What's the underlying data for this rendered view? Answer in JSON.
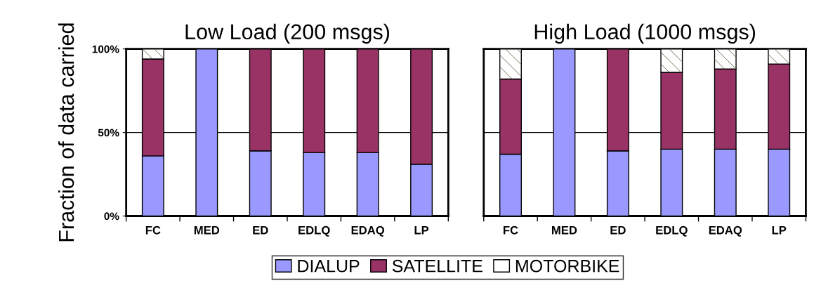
{
  "chart_data": [
    {
      "type": "bar",
      "title": "Low Load (200 msgs)",
      "ylabel": "Fraction of data carried",
      "stacked": true,
      "categories": [
        "FC",
        "MED",
        "ED",
        "EDLQ",
        "EDAQ",
        "LP"
      ],
      "series": [
        {
          "name": "DIALUP",
          "color": "#9999ff",
          "values": [
            0.36,
            1.0,
            0.39,
            0.38,
            0.38,
            0.31
          ]
        },
        {
          "name": "SATELLITE",
          "color": "#993366",
          "values": [
            0.58,
            null,
            0.61,
            0.62,
            0.62,
            0.69
          ]
        },
        {
          "name": "MOTORBIKE",
          "color": "#ffffff",
          "values": [
            0.06,
            null,
            null,
            null,
            null,
            null
          ]
        }
      ],
      "ylim": [
        0,
        1
      ],
      "yticks": [
        {
          "value": 0,
          "label": "0%"
        },
        {
          "value": 0.5,
          "label": "50%"
        },
        {
          "value": 1,
          "label": "100%"
        }
      ],
      "grid": "y",
      "legend": "bottom"
    },
    {
      "type": "bar",
      "title": "High Load (1000 msgs)",
      "stacked": true,
      "categories": [
        "FC",
        "MED",
        "ED",
        "EDLQ",
        "EDAQ",
        "LP"
      ],
      "series": [
        {
          "color": "#9999ff",
          "values": [
            0.37,
            1.0,
            0.39,
            0.4,
            0.4,
            0.4
          ]
        },
        {
          "color": "#993366",
          "values": [
            0.45,
            null,
            0.61,
            0.46,
            0.48,
            0.51
          ]
        },
        {
          "color": "#ffffff",
          "values": [
            0.18,
            null,
            null,
            0.14,
            0.12,
            0.09
          ]
        }
      ],
      "ylim": [
        0,
        1
      ],
      "yticks": [
        {
          "value": 0,
          "label": null
        },
        {
          "value": 0.5,
          "label": null
        },
        {
          "value": 1,
          "label": null
        }
      ],
      "grid": "y",
      "tick_labels": "x"
    }
  ]
}
